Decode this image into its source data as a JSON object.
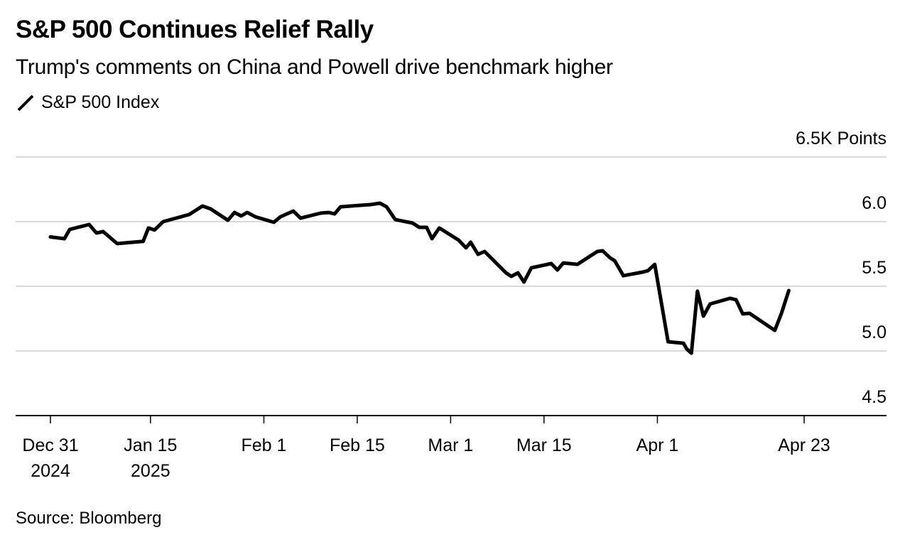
{
  "header": {
    "title": "S&P 500 Continues Relief Rally",
    "subtitle": "Trump's comments on China and Powell drive benchmark higher"
  },
  "legend": {
    "items": [
      {
        "label": "S&P 500 Index",
        "icon": "line-swatch-icon",
        "color": "#000000"
      }
    ]
  },
  "footer": {
    "source": "Source: Bloomberg"
  },
  "colors": {
    "line": "#000000",
    "grid": "#d9d9d9",
    "axis": "#000000",
    "background": "#ffffff"
  },
  "chart_data": {
    "type": "line",
    "title": "S&P 500 Continues Relief Rally",
    "subtitle": "Trump's comments on China and Powell drive benchmark higher",
    "xlabel": "",
    "ylabel": "",
    "y_unit_label": "6.5K Points",
    "ylim": [
      4500,
      6500
    ],
    "y_ticks": [
      {
        "value": 6500,
        "label": "6.5K Points"
      },
      {
        "value": 6000,
        "label": "6.0"
      },
      {
        "value": 5500,
        "label": "5.5"
      },
      {
        "value": 5000,
        "label": "5.0"
      },
      {
        "value": 4500,
        "label": "4.5"
      }
    ],
    "x_domain_days": [
      0,
      126
    ],
    "x_ticks": [
      {
        "day": 0,
        "label": [
          "Dec 31",
          "2024"
        ]
      },
      {
        "day": 15,
        "label": [
          "Jan 15",
          "2025"
        ]
      },
      {
        "day": 32,
        "label": [
          "Feb 1"
        ]
      },
      {
        "day": 46,
        "label": [
          "Feb 15"
        ]
      },
      {
        "day": 60,
        "label": [
          "Mar 1"
        ]
      },
      {
        "day": 74,
        "label": [
          "Mar 15"
        ]
      },
      {
        "day": 91,
        "label": [
          "Apr 1"
        ]
      },
      {
        "day": 113,
        "label": [
          "Apr 23"
        ]
      }
    ],
    "grid": true,
    "legend_position": "top-left",
    "series": [
      {
        "name": "S&P 500 Index",
        "points": [
          [
            0.0,
            5882
          ],
          [
            2.1,
            5868
          ],
          [
            2.9,
            5940
          ],
          [
            5.8,
            5978
          ],
          [
            6.9,
            5912
          ],
          [
            7.9,
            5923
          ],
          [
            10.0,
            5830
          ],
          [
            13.9,
            5847
          ],
          [
            14.7,
            5951
          ],
          [
            15.6,
            5935
          ],
          [
            16.9,
            6000
          ],
          [
            20.8,
            6055
          ],
          [
            22.8,
            6121
          ],
          [
            24.0,
            6099
          ],
          [
            26.6,
            6011
          ],
          [
            27.6,
            6071
          ],
          [
            28.6,
            6044
          ],
          [
            29.5,
            6071
          ],
          [
            30.7,
            6038
          ],
          [
            33.5,
            5995
          ],
          [
            34.5,
            6038
          ],
          [
            36.4,
            6082
          ],
          [
            37.5,
            6027
          ],
          [
            40.5,
            6066
          ],
          [
            41.7,
            6071
          ],
          [
            42.6,
            6060
          ],
          [
            43.5,
            6115
          ],
          [
            48.0,
            6132
          ],
          [
            49.4,
            6143
          ],
          [
            50.4,
            6115
          ],
          [
            51.7,
            6016
          ],
          [
            54.3,
            5989
          ],
          [
            55.3,
            5956
          ],
          [
            56.4,
            5956
          ],
          [
            57.2,
            5868
          ],
          [
            58.3,
            5951
          ],
          [
            61.2,
            5857
          ],
          [
            62.3,
            5797
          ],
          [
            63.0,
            5841
          ],
          [
            64.1,
            5747
          ],
          [
            65.1,
            5769
          ],
          [
            68.3,
            5604
          ],
          [
            69.1,
            5577
          ],
          [
            70.1,
            5604
          ],
          [
            71.0,
            5533
          ],
          [
            72.1,
            5643
          ],
          [
            75.1,
            5676
          ],
          [
            76.0,
            5626
          ],
          [
            76.9,
            5681
          ],
          [
            79.0,
            5670
          ],
          [
            82.0,
            5769
          ],
          [
            82.8,
            5775
          ],
          [
            83.9,
            5720
          ],
          [
            84.6,
            5698
          ],
          [
            85.9,
            5582
          ],
          [
            88.8,
            5610
          ],
          [
            89.6,
            5621
          ],
          [
            90.6,
            5670
          ],
          [
            92.6,
            5071
          ],
          [
            94.9,
            5060
          ],
          [
            95.4,
            5016
          ],
          [
            96.1,
            4983
          ],
          [
            97.0,
            5462
          ],
          [
            97.9,
            5269
          ],
          [
            98.9,
            5363
          ],
          [
            101.9,
            5407
          ],
          [
            102.8,
            5396
          ],
          [
            103.8,
            5286
          ],
          [
            104.8,
            5291
          ],
          [
            108.6,
            5159
          ],
          [
            109.6,
            5291
          ],
          [
            110.7,
            5467
          ]
        ]
      }
    ],
    "annotations": []
  }
}
